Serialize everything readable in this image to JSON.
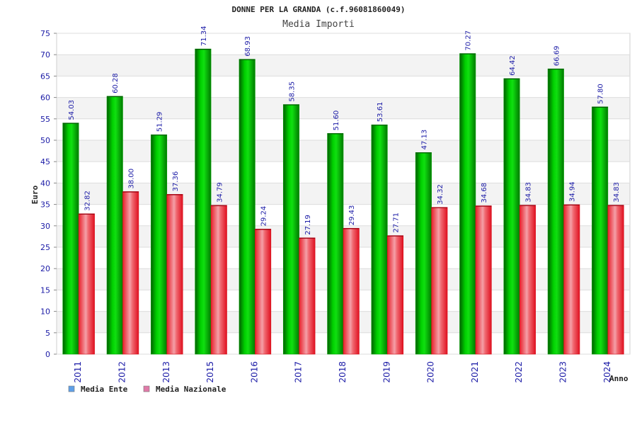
{
  "chart_data": {
    "type": "bar",
    "title": "DONNE PER LA GRANDA (c.f.96081860049)",
    "subtitle": "Media Importi",
    "xlabel": "Anno",
    "ylabel": "Euro",
    "ylim": [
      0,
      75
    ],
    "yticks": [
      0,
      5,
      10,
      15,
      20,
      25,
      30,
      35,
      40,
      45,
      50,
      55,
      60,
      65,
      70,
      75
    ],
    "grid": true,
    "legend_position": "bottom-left",
    "categories": [
      "2011",
      "2012",
      "2013",
      "2015",
      "2016",
      "2017",
      "2018",
      "2019",
      "2020",
      "2021",
      "2022",
      "2023",
      "2024"
    ],
    "series": [
      {
        "name": "Media Ente",
        "legend_color": "#5fa0e8",
        "bar_color": "#00b400",
        "labels": [
          "54.03",
          "60.28",
          "51.29",
          "71.34",
          "68.93",
          "58.35",
          "51.60",
          "53.61",
          "47.13",
          "70.27",
          "64.42",
          "66.69",
          "57.80"
        ],
        "values": [
          54.03,
          60.28,
          51.29,
          71.34,
          68.93,
          58.35,
          51.6,
          53.61,
          47.13,
          70.27,
          64.42,
          66.69,
          57.8
        ]
      },
      {
        "name": "Media Nazionale",
        "legend_color": "#e07aa8",
        "bar_color": "#e8303a",
        "labels": [
          "32.82",
          "38.00",
          "37.36",
          "34.79",
          "29.24",
          "27.19",
          "29.43",
          "27.71",
          "34.32",
          "34.68",
          "34.83",
          "34.94",
          "34.83"
        ],
        "values": [
          32.82,
          38.0,
          37.36,
          34.79,
          29.24,
          27.19,
          29.43,
          27.71,
          34.32,
          34.68,
          34.83,
          34.94,
          34.83
        ]
      }
    ]
  }
}
